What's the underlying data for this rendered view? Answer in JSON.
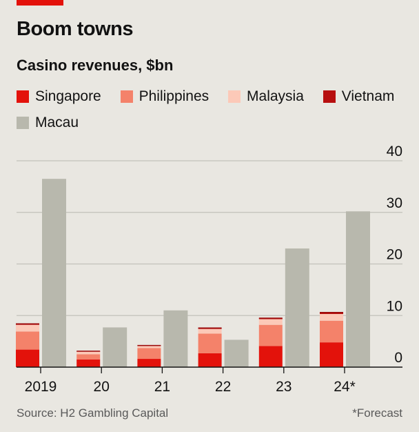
{
  "header": {
    "title": "Boom towns",
    "subtitle": "Casino revenues, $bn"
  },
  "footer": {
    "source": "Source: H2 Gambling Capital",
    "note": "*Forecast"
  },
  "colors": {
    "accent": "#e3120b",
    "singapore": "#e3120b",
    "philippines": "#f4826a",
    "malaysia": "#fcc9b8",
    "vietnam": "#b70f0f",
    "macau": "#b8b8ad",
    "gridline": "#c2c2ba",
    "axis": "#121212"
  },
  "chart_data": {
    "type": "bar",
    "categories": [
      "2019",
      "20",
      "21",
      "22",
      "23",
      "24*"
    ],
    "ylim": [
      0,
      40
    ],
    "yticks": [
      0,
      10,
      20,
      30,
      40
    ],
    "stacked_series": [
      {
        "name": "Singapore",
        "color_key": "singapore",
        "values": [
          3.4,
          1.5,
          1.6,
          2.7,
          4.1,
          4.8
        ]
      },
      {
        "name": "Philippines",
        "color_key": "philippines",
        "values": [
          3.5,
          1.0,
          2.1,
          3.8,
          4.1,
          4.2
        ]
      },
      {
        "name": "Malaysia",
        "color_key": "malaysia",
        "values": [
          1.3,
          0.5,
          0.4,
          0.9,
          1.1,
          1.3
        ]
      },
      {
        "name": "Vietnam",
        "color_key": "vietnam",
        "values": [
          0.2,
          0.1,
          0.1,
          0.2,
          0.2,
          0.3
        ]
      }
    ],
    "series_side": {
      "name": "Macau",
      "color_key": "macau",
      "values": [
        36.5,
        7.7,
        11.0,
        5.3,
        23.0,
        30.2
      ]
    },
    "legend": [
      "Singapore",
      "Philippines",
      "Malaysia",
      "Vietnam",
      "Macau"
    ],
    "legend_placement": "top",
    "grid": true
  }
}
